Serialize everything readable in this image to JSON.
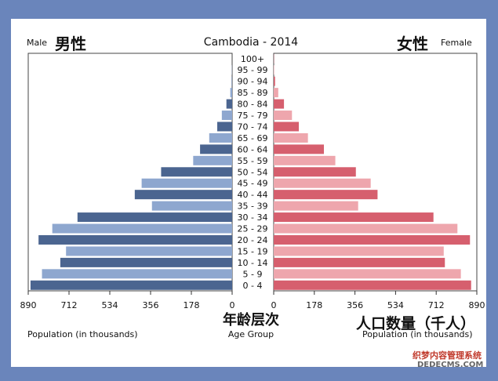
{
  "chart_data": {
    "type": "bar",
    "orientation": "horizontal-population-pyramid",
    "title": "Cambodia - 2014",
    "left_label": "Male",
    "left_label_cn": "男性",
    "right_label": "Female",
    "right_label_cn": "女性",
    "categories": [
      "0 - 4",
      "5 - 9",
      "10 - 14",
      "15 - 19",
      "20 - 24",
      "25 - 29",
      "30 - 34",
      "35 - 39",
      "40 - 44",
      "45 - 49",
      "50 - 54",
      "55 - 59",
      "60 - 64",
      "65 - 69",
      "70 - 74",
      "75 - 79",
      "80 - 84",
      "85 - 89",
      "90 - 94",
      "95 - 99",
      "100+"
    ],
    "series": [
      {
        "name": "Male",
        "values": [
          880,
          830,
          750,
          725,
          845,
          785,
          675,
          350,
          425,
          395,
          310,
          170,
          140,
          100,
          65,
          45,
          25,
          8,
          2,
          1,
          0
        ]
      },
      {
        "name": "Female",
        "values": [
          865,
          820,
          750,
          745,
          860,
          805,
          700,
          370,
          455,
          425,
          360,
          270,
          220,
          150,
          110,
          80,
          45,
          20,
          6,
          2,
          1
        ]
      }
    ],
    "xlim": [
      0,
      890
    ],
    "xticks": [
      "890",
      "712",
      "534",
      "356",
      "178",
      "0",
      "0",
      "178",
      "356",
      "534",
      "712",
      "890"
    ],
    "xlabel_left": "Population (in thousands)",
    "xlabel_center": "Age Group",
    "xlabel_right": "Population (in thousands)",
    "xlabel_center_cn": "年龄层次",
    "xlabel_right_cn": "人口数量（千人）",
    "grid": false,
    "colors": {
      "male_dark": "#4b6590",
      "male_light": "#8ea7cf",
      "female_dark": "#d65f6e",
      "female_light": "#eea6ad"
    }
  },
  "watermark": {
    "line1": "织梦内容管理系统",
    "line2": "DEDECMS.COM"
  }
}
